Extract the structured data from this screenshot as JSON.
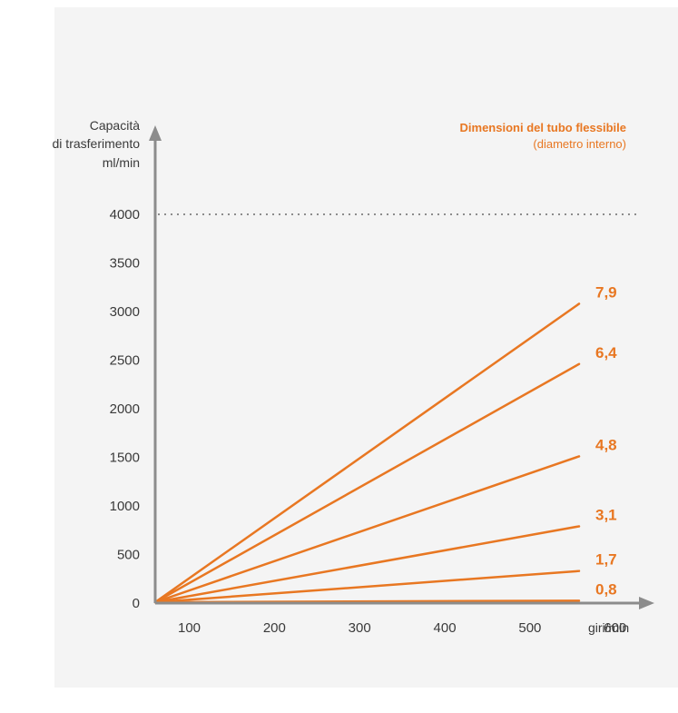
{
  "chart_data": {
    "type": "line",
    "ylabel": [
      "Capacità",
      "di trasferimento",
      "ml/min"
    ],
    "xlabel": "giri/min",
    "legend_title": "Dimensioni del tubo flessibile",
    "legend_subtitle": "(diametro interno)",
    "xlim": [
      0,
      600
    ],
    "ylim": [
      0,
      4000
    ],
    "x_ticks": [
      100,
      200,
      300,
      400,
      500,
      600
    ],
    "y_ticks": [
      0,
      500,
      1000,
      1500,
      2000,
      2500,
      3000,
      3500,
      4000
    ],
    "reference_line": {
      "y": 4000,
      "style": "dotted"
    },
    "series": [
      {
        "name": "7,9",
        "points": [
          [
            0,
            0
          ],
          [
            600,
            3080
          ]
        ]
      },
      {
        "name": "6,4",
        "points": [
          [
            0,
            0
          ],
          [
            600,
            2460
          ]
        ]
      },
      {
        "name": "4,8",
        "points": [
          [
            0,
            0
          ],
          [
            600,
            1510
          ]
        ]
      },
      {
        "name": "3,1",
        "points": [
          [
            0,
            0
          ],
          [
            600,
            790
          ]
        ]
      },
      {
        "name": "1,7",
        "points": [
          [
            0,
            0
          ],
          [
            600,
            330
          ]
        ]
      },
      {
        "name": "0,8",
        "points": [
          [
            0,
            0
          ],
          [
            600,
            25
          ]
        ]
      }
    ],
    "grid": false,
    "legend_position": "top-right",
    "colors": {
      "series": "#e87722",
      "axis": "#8c8c8c",
      "dotted": "#8c8c8c"
    }
  }
}
